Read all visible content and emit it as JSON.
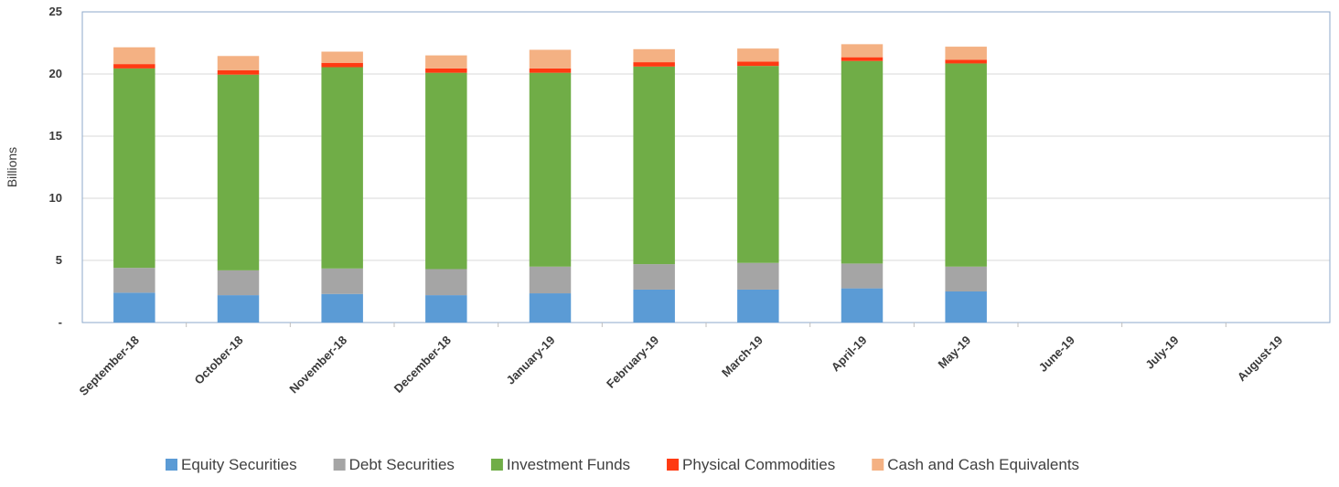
{
  "chart_data": {
    "type": "bar",
    "stacked": true,
    "title": "",
    "xlabel": "",
    "ylabel": "Billions",
    "ylim": [
      0,
      25
    ],
    "yticks": [
      0,
      5,
      10,
      15,
      20,
      25
    ],
    "ytick_labels": [
      "-",
      "5",
      "10",
      "15",
      "20",
      "25"
    ],
    "grid": true,
    "legend_position": "bottom",
    "categories": [
      "September-18",
      "October-18",
      "November-18",
      "December-18",
      "January-19",
      "February-19",
      "March-19",
      "April-19",
      "May-19",
      "June-19",
      "July-19",
      "August-19"
    ],
    "series": [
      {
        "name": "Equity Securities",
        "color": "#5B9BD5",
        "values": [
          2.4,
          2.2,
          2.3,
          2.2,
          2.35,
          2.65,
          2.65,
          2.75,
          2.5,
          null,
          null,
          null
        ]
      },
      {
        "name": "Debt Securities",
        "color": "#A5A5A5",
        "values": [
          2.0,
          2.0,
          2.05,
          2.1,
          2.15,
          2.05,
          2.15,
          2.0,
          2.0,
          null,
          null,
          null
        ]
      },
      {
        "name": "Investment Funds",
        "color": "#70AD47",
        "values": [
          16.05,
          15.75,
          16.2,
          15.8,
          15.6,
          15.9,
          15.85,
          16.3,
          16.35,
          null,
          null,
          null
        ]
      },
      {
        "name": "Physical Commodities",
        "color": "#FF3A12",
        "values": [
          0.35,
          0.35,
          0.35,
          0.35,
          0.35,
          0.35,
          0.35,
          0.3,
          0.3,
          null,
          null,
          null
        ]
      },
      {
        "name": "Cash and Cash Equivalents",
        "color": "#F4B183",
        "values": [
          1.35,
          1.15,
          0.9,
          1.05,
          1.5,
          1.05,
          1.05,
          1.05,
          1.05,
          null,
          null,
          null
        ]
      }
    ]
  },
  "style": {
    "plot_border_color": "#8EAACB",
    "grid_color": "#D9D9D9",
    "axis_color": "#BFBFBF"
  }
}
